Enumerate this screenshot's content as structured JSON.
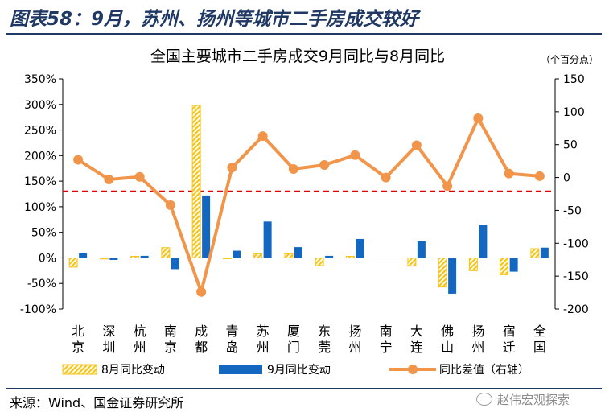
{
  "figure": {
    "title": "图表58：9月，苏州、扬州等城市二手房成交较好",
    "source": "来源：Wind、国金证券研究所",
    "watermark": "赵伟宏观探索"
  },
  "colors": {
    "title": "#1F3864",
    "aug_bar": "#F5C518",
    "sep_bar": "#1467C0",
    "diff_line": "#F0954A",
    "ref_line": "#E00000"
  },
  "chart_data": {
    "type": "bar",
    "title": "全国主要城市二手房成交9月同比与8月同比",
    "y2_unit": "（个百分点）",
    "categories": [
      [
        "北",
        "京"
      ],
      [
        "深",
        "圳"
      ],
      [
        "杭",
        "州"
      ],
      [
        "南",
        "京"
      ],
      [
        "成",
        "都"
      ],
      [
        "青",
        "岛"
      ],
      [
        "苏",
        "州"
      ],
      [
        "厦",
        "门"
      ],
      [
        "东",
        "莞"
      ],
      [
        "扬",
        "州"
      ],
      [
        "南",
        "宁"
      ],
      [
        "大",
        "连"
      ],
      [
        "佛",
        "山"
      ],
      [
        "扬",
        "州"
      ],
      [
        "宿",
        "迁"
      ],
      [
        "全",
        "国"
      ]
    ],
    "series": [
      {
        "name": "8月同比变动",
        "axis": "left",
        "kind": "bar",
        "pattern": "hatched",
        "values": [
          -18,
          -2,
          3,
          20,
          298,
          -1,
          8,
          8,
          -15,
          3,
          0,
          -16,
          -57,
          -25,
          -33,
          18
        ]
      },
      {
        "name": "9月同比变动",
        "axis": "left",
        "kind": "bar",
        "values": [
          9,
          -4,
          4,
          -22,
          122,
          14,
          71,
          21,
          4,
          37,
          0,
          33,
          -70,
          65,
          -27,
          20
        ]
      },
      {
        "name": "同比差值（右轴）",
        "axis": "right",
        "kind": "line",
        "values": [
          27,
          -3,
          1,
          -42,
          -174,
          15,
          63,
          13,
          19,
          34,
          0,
          49,
          -13,
          90,
          6,
          2
        ]
      }
    ],
    "y_left": {
      "min": -100,
      "max": 350,
      "step": 50,
      "ticks": [
        "-100%",
        "-50%",
        "0%",
        "50%",
        "100%",
        "150%",
        "200%",
        "250%",
        "300%",
        "350%"
      ]
    },
    "y_right": {
      "min": -200,
      "max": 150,
      "step": 50,
      "ticks": [
        "-200",
        "-150",
        "-100",
        "-50",
        "0",
        "50",
        "100",
        "150"
      ]
    },
    "reference_line": {
      "axis": "left",
      "value": 130,
      "style": "dashed"
    },
    "legend": {
      "position": "bottom"
    },
    "grid": false
  }
}
